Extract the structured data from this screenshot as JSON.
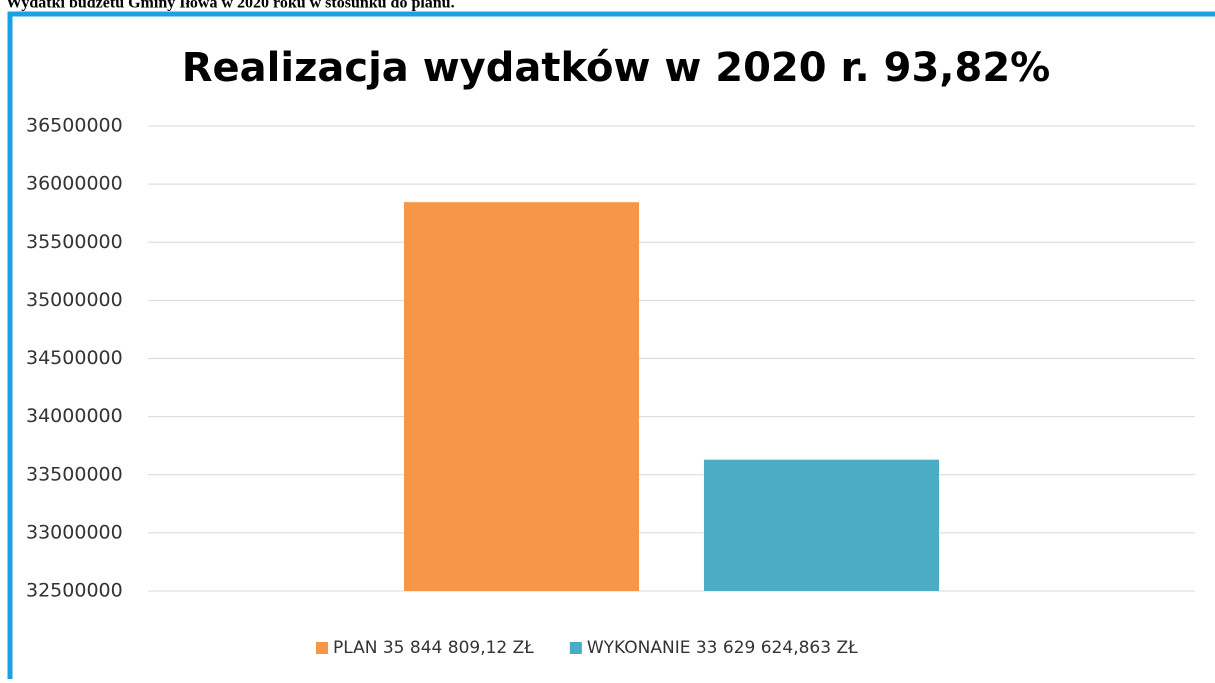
{
  "heading": "Wydatki budżetu Gminy Iłowa w 2020 roku w stosunku do planu.",
  "chart_data": {
    "type": "bar",
    "title": "Realizacja wydatków w 2020 r. 93,82%",
    "categories": [
      null
    ],
    "series": [
      {
        "name": "PLAN 35 844 809,12 ZŁ",
        "color": "#f79646",
        "values": [
          35844809.12
        ]
      },
      {
        "name": "WYKONANIE 33 629 624,863 ZŁ",
        "color": "#4bacc6",
        "values": [
          33629624.863
        ]
      }
    ],
    "ylim": [
      32500000,
      36500000
    ],
    "yticks": [
      32500000,
      33000000,
      33500000,
      34000000,
      34500000,
      35000000,
      35500000,
      36000000,
      36500000
    ],
    "grid": true,
    "legend": "bottom"
  }
}
